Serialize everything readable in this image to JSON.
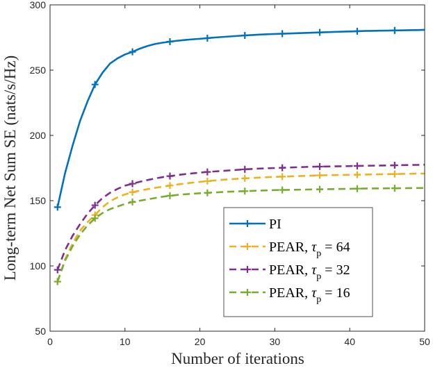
{
  "chart_data": {
    "type": "line",
    "title": "",
    "xlabel": "Number of iterations",
    "ylabel": "Long-term Net Sum SE (nats/s/Hz)",
    "xlim": [
      0,
      50
    ],
    "ylim": [
      50,
      300
    ],
    "xticks": [
      0,
      10,
      20,
      30,
      40,
      50
    ],
    "yticks": [
      50,
      100,
      150,
      200,
      250,
      300
    ],
    "grid": false,
    "legend_position": "bottom-right",
    "x": [
      1,
      2,
      3,
      4,
      5,
      6,
      7,
      8,
      9,
      10,
      11,
      12,
      13,
      14,
      15,
      16,
      17,
      18,
      19,
      20,
      21,
      22,
      23,
      24,
      25,
      26,
      27,
      28,
      29,
      30,
      31,
      32,
      33,
      34,
      35,
      36,
      37,
      38,
      39,
      40,
      41,
      42,
      43,
      44,
      45,
      46,
      47,
      48,
      49,
      50
    ],
    "marker_x": [
      1,
      6,
      11,
      16,
      21,
      26,
      31,
      36,
      41,
      46
    ],
    "series": [
      {
        "name": "PI",
        "label_main": "PI",
        "label_sub": "",
        "label_value": "",
        "color": "#0072BD",
        "style": "solid",
        "values": [
          145,
          171,
          192,
          211,
          226,
          239,
          248,
          255,
          259,
          262,
          264,
          266.5,
          268.5,
          270,
          271,
          271.8,
          272.5,
          273.1,
          273.6,
          274,
          274.5,
          275,
          275.4,
          275.8,
          276.2,
          276.6,
          276.9,
          277.2,
          277.5,
          277.7,
          277.9,
          278.1,
          278.3,
          278.5,
          278.7,
          278.9,
          279.1,
          279.3,
          279.5,
          279.6,
          279.8,
          280,
          280.1,
          280.2,
          280.3,
          280.4,
          280.5,
          280.6,
          280.7,
          280.9
        ]
      },
      {
        "name": "PEAR, τp = 64",
        "label_main": "PEAR, ",
        "label_sub": "p",
        "label_value": " = 64",
        "color": "#EDB120",
        "style": "dashed",
        "values": [
          88,
          105,
          117,
          127,
          133.5,
          139,
          145,
          149.5,
          152.5,
          154.8,
          156.5,
          157.7,
          158.8,
          159.8,
          160.7,
          161.6,
          162.4,
          163.1,
          163.8,
          164.4,
          165,
          165.5,
          166,
          166.4,
          166.8,
          167.1,
          167.4,
          167.7,
          168,
          168.2,
          168.4,
          168.6,
          168.8,
          169,
          169.2,
          169.4,
          169.5,
          169.6,
          169.7,
          169.8,
          169.9,
          170,
          170.1,
          170.2,
          170.3,
          170.4,
          170.5,
          170.6,
          170.7,
          170.8
        ]
      },
      {
        "name": "PEAR, τp = 32",
        "label_main": "PEAR, ",
        "label_sub": "p",
        "label_value": " = 32",
        "color": "#7E2F8E",
        "style": "dashed",
        "values": [
          97,
          112,
          123,
          132,
          140,
          146.5,
          152,
          156,
          159,
          161.5,
          163,
          164.5,
          165.8,
          167,
          168,
          168.8,
          169.6,
          170.3,
          170.9,
          171.5,
          172,
          172.4,
          172.8,
          173.2,
          173.6,
          174,
          174.3,
          174.6,
          174.8,
          175,
          175.2,
          175.4,
          175.6,
          175.8,
          176,
          176.1,
          176.2,
          176.3,
          176.4,
          176.5,
          176.6,
          176.7,
          176.8,
          176.9,
          177,
          177.1,
          177.2,
          177.3,
          177.4,
          177.5
        ]
      },
      {
        "name": "PEAR, τp = 16",
        "label_main": "PEAR, ",
        "label_sub": "p",
        "label_value": " = 16",
        "color": "#77AC30",
        "style": "dashed",
        "values": [
          88,
          104,
          115,
          124,
          131,
          136.5,
          140.5,
          143.5,
          145.5,
          147.5,
          149,
          150,
          151,
          152,
          153,
          153.8,
          154.4,
          154.9,
          155.3,
          155.7,
          156,
          156.3,
          156.6,
          156.9,
          157.1,
          157.3,
          157.5,
          157.7,
          157.9,
          158.1,
          158.2,
          158.3,
          158.4,
          158.5,
          158.6,
          158.7,
          158.8,
          158.9,
          159,
          159.1,
          159.2,
          159.3,
          159.35,
          159.4,
          159.45,
          159.5,
          159.55,
          159.6,
          159.65,
          159.7
        ]
      }
    ]
  }
}
